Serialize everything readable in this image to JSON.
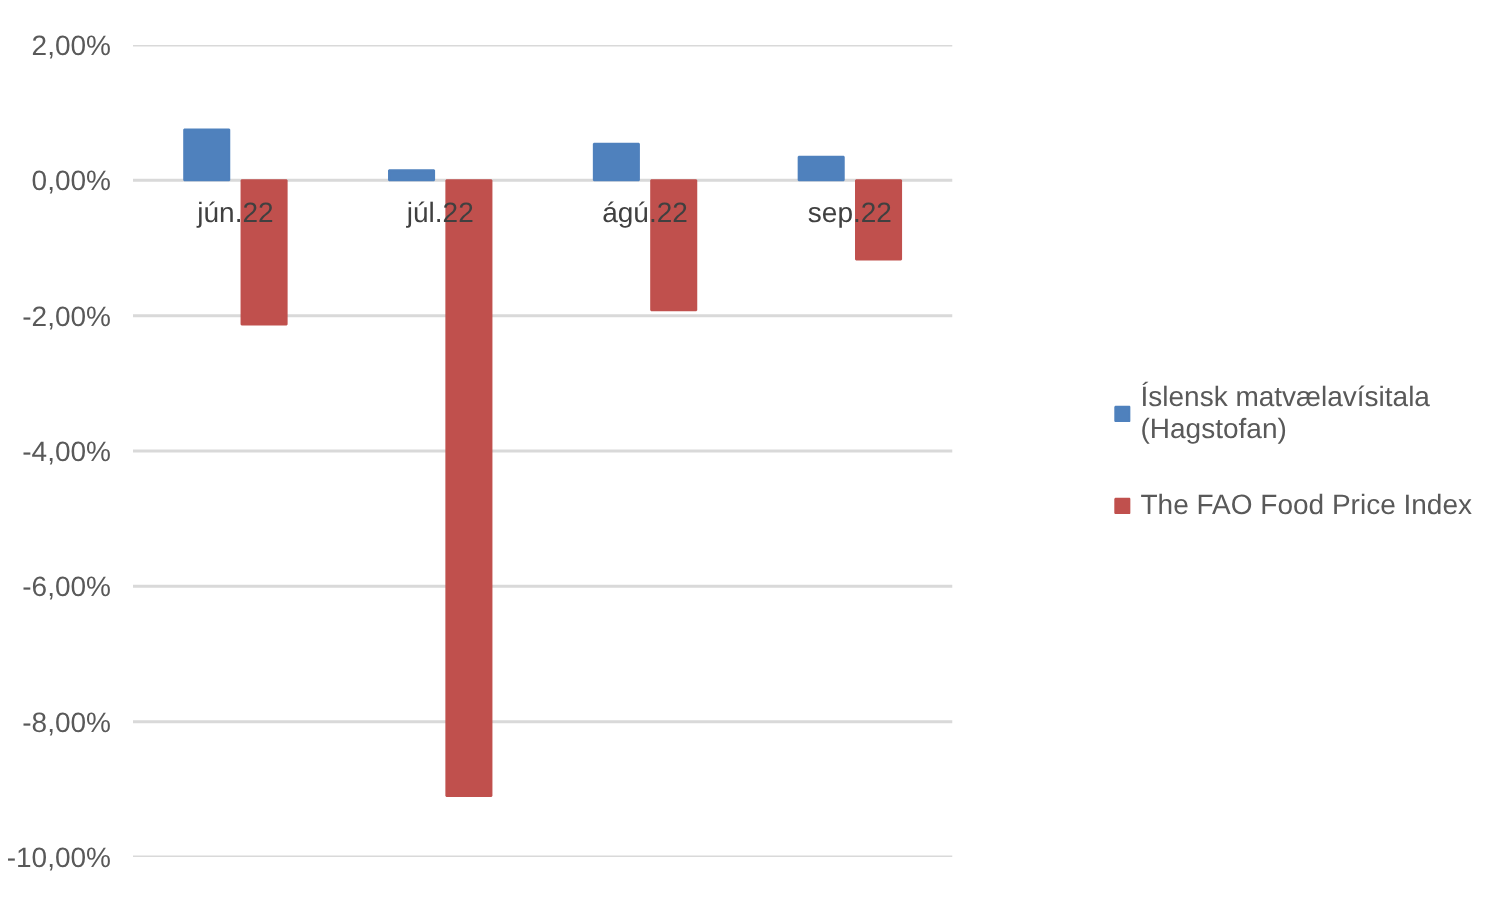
{
  "chart_data": {
    "type": "bar",
    "categories": [
      "jún.22",
      "júl.22",
      "ágú.22",
      "sep.22"
    ],
    "series": [
      {
        "name": "Íslensk matvælavísitala (Hagstofan)",
        "color": "#4f81bd",
        "values": [
          0.75,
          0.15,
          0.54,
          0.35
        ]
      },
      {
        "name": "The FAO Food Price Index",
        "color": "#c0504d",
        "values": [
          -2.13,
          -9.1,
          -1.92,
          -1.17
        ]
      }
    ],
    "ylim": [
      -10,
      2
    ],
    "yticks": [
      {
        "value": 2,
        "label": "2,00%"
      },
      {
        "value": 0,
        "label": "0,00%"
      },
      {
        "value": -2,
        "label": "-2,00%"
      },
      {
        "value": -4,
        "label": "-4,00%"
      },
      {
        "value": -6,
        "label": "-6,00%"
      },
      {
        "value": -8,
        "label": "-8,00%"
      },
      {
        "value": -10,
        "label": "-10,00%"
      }
    ],
    "grid": "y",
    "legend": "right"
  }
}
